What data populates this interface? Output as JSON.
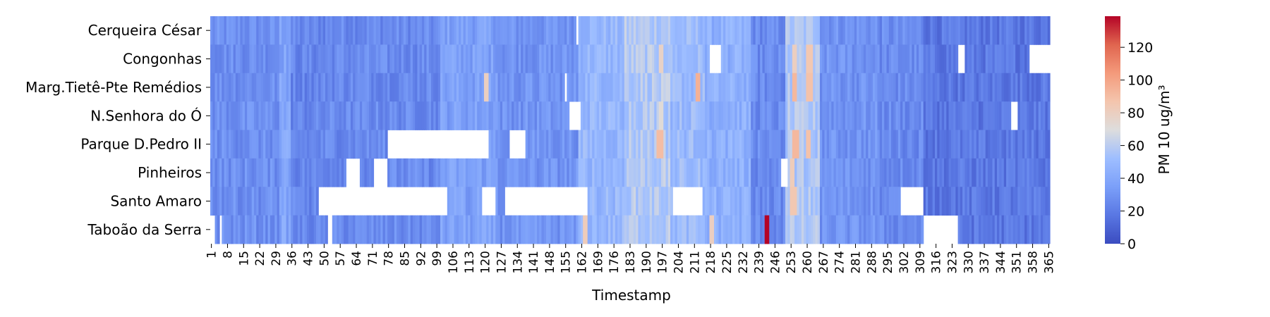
{
  "chart_data": {
    "type": "heatmap",
    "title": "",
    "xlabel": "Timestamp",
    "ylabel": "",
    "colorbar_label": "PM 10 ug/m³",
    "colormap": "coolwarm",
    "vmin": 0,
    "vmax": 139,
    "colorbar_ticks": [
      "0",
      "20",
      "40",
      "60",
      "80",
      "100",
      "120"
    ],
    "x_range": [
      1,
      365
    ],
    "x_ticks": [
      "1",
      "8",
      "15",
      "22",
      "29",
      "36",
      "43",
      "50",
      "57",
      "64",
      "71",
      "78",
      "85",
      "92",
      "99",
      "106",
      "113",
      "120",
      "127",
      "134",
      "141",
      "148",
      "155",
      "162",
      "169",
      "176",
      "183",
      "190",
      "197",
      "204",
      "211",
      "218",
      "225",
      "232",
      "239",
      "246",
      "253",
      "260",
      "267",
      "274",
      "281",
      "288",
      "295",
      "302",
      "309",
      "316",
      "323",
      "330",
      "337",
      "344",
      "351",
      "358",
      "365"
    ],
    "rows": [
      "Cerqueira César",
      "Congonhas",
      "Marg.Tietê-Pte Remédios",
      "N.Senhora do Ó",
      "Parque D.Pedro II",
      "Pinheiros",
      "Santo Amaro",
      "Taboão da Serra"
    ],
    "overall_level": {
      "description_ranges": [
        {
          "from": 1,
          "to": 30,
          "value": 28
        },
        {
          "from": 31,
          "to": 35,
          "value": 38
        },
        {
          "from": 36,
          "to": 50,
          "value": 24
        },
        {
          "from": 51,
          "to": 100,
          "value": 26
        },
        {
          "from": 101,
          "to": 125,
          "value": 36
        },
        {
          "from": 126,
          "to": 160,
          "value": 30
        },
        {
          "from": 161,
          "to": 180,
          "value": 48
        },
        {
          "from": 181,
          "to": 200,
          "value": 58
        },
        {
          "from": 201,
          "to": 215,
          "value": 50
        },
        {
          "from": 216,
          "to": 235,
          "value": 44
        },
        {
          "from": 236,
          "to": 250,
          "value": 26
        },
        {
          "from": 251,
          "to": 265,
          "value": 56
        },
        {
          "from": 266,
          "to": 290,
          "value": 30
        },
        {
          "from": 291,
          "to": 310,
          "value": 26
        },
        {
          "from": 311,
          "to": 365,
          "value": 18
        }
      ]
    },
    "spikes": [
      {
        "row": 7,
        "from": 242,
        "to": 243,
        "value": 139
      },
      {
        "row": 2,
        "from": 212,
        "to": 213,
        "value": 95
      },
      {
        "row": 2,
        "from": 254,
        "to": 255,
        "value": 92
      },
      {
        "row": 2,
        "from": 260,
        "to": 262,
        "value": 88
      },
      {
        "row": 4,
        "from": 195,
        "to": 197,
        "value": 90
      },
      {
        "row": 4,
        "from": 254,
        "to": 256,
        "value": 92
      },
      {
        "row": 4,
        "from": 260,
        "to": 261,
        "value": 88
      },
      {
        "row": 1,
        "from": 260,
        "to": 262,
        "value": 85
      },
      {
        "row": 1,
        "from": 254,
        "to": 255,
        "value": 80
      },
      {
        "row": 1,
        "from": 196,
        "to": 197,
        "value": 78
      },
      {
        "row": 2,
        "from": 120,
        "to": 121,
        "value": 80
      },
      {
        "row": 7,
        "from": 163,
        "to": 164,
        "value": 82
      },
      {
        "row": 7,
        "from": 218,
        "to": 219,
        "value": 80
      },
      {
        "row": 6,
        "from": 253,
        "to": 255,
        "value": 85
      },
      {
        "row": 5,
        "from": 253,
        "to": 254,
        "value": 82
      },
      {
        "row": 3,
        "from": 196,
        "to": 197,
        "value": 72
      }
    ],
    "missing": [
      {
        "row": 0,
        "from": 160,
        "to": 160
      },
      {
        "row": 1,
        "from": 218,
        "to": 222
      },
      {
        "row": 1,
        "from": 326,
        "to": 328
      },
      {
        "row": 1,
        "from": 357,
        "to": 365
      },
      {
        "row": 2,
        "from": 155,
        "to": 155
      },
      {
        "row": 3,
        "from": 157,
        "to": 161
      },
      {
        "row": 3,
        "from": 349,
        "to": 351
      },
      {
        "row": 4,
        "from": 78,
        "to": 121
      },
      {
        "row": 4,
        "from": 131,
        "to": 137
      },
      {
        "row": 5,
        "from": 60,
        "to": 65
      },
      {
        "row": 5,
        "from": 72,
        "to": 77
      },
      {
        "row": 5,
        "from": 249,
        "to": 251
      },
      {
        "row": 6,
        "from": 48,
        "to": 103
      },
      {
        "row": 6,
        "from": 119,
        "to": 124
      },
      {
        "row": 6,
        "from": 129,
        "to": 164
      },
      {
        "row": 6,
        "from": 202,
        "to": 214
      },
      {
        "row": 6,
        "from": 301,
        "to": 310
      },
      {
        "row": 7,
        "from": 1,
        "to": 2
      },
      {
        "row": 7,
        "from": 5,
        "to": 5
      },
      {
        "row": 7,
        "from": 52,
        "to": 53
      },
      {
        "row": 7,
        "from": 311,
        "to": 325
      }
    ]
  }
}
